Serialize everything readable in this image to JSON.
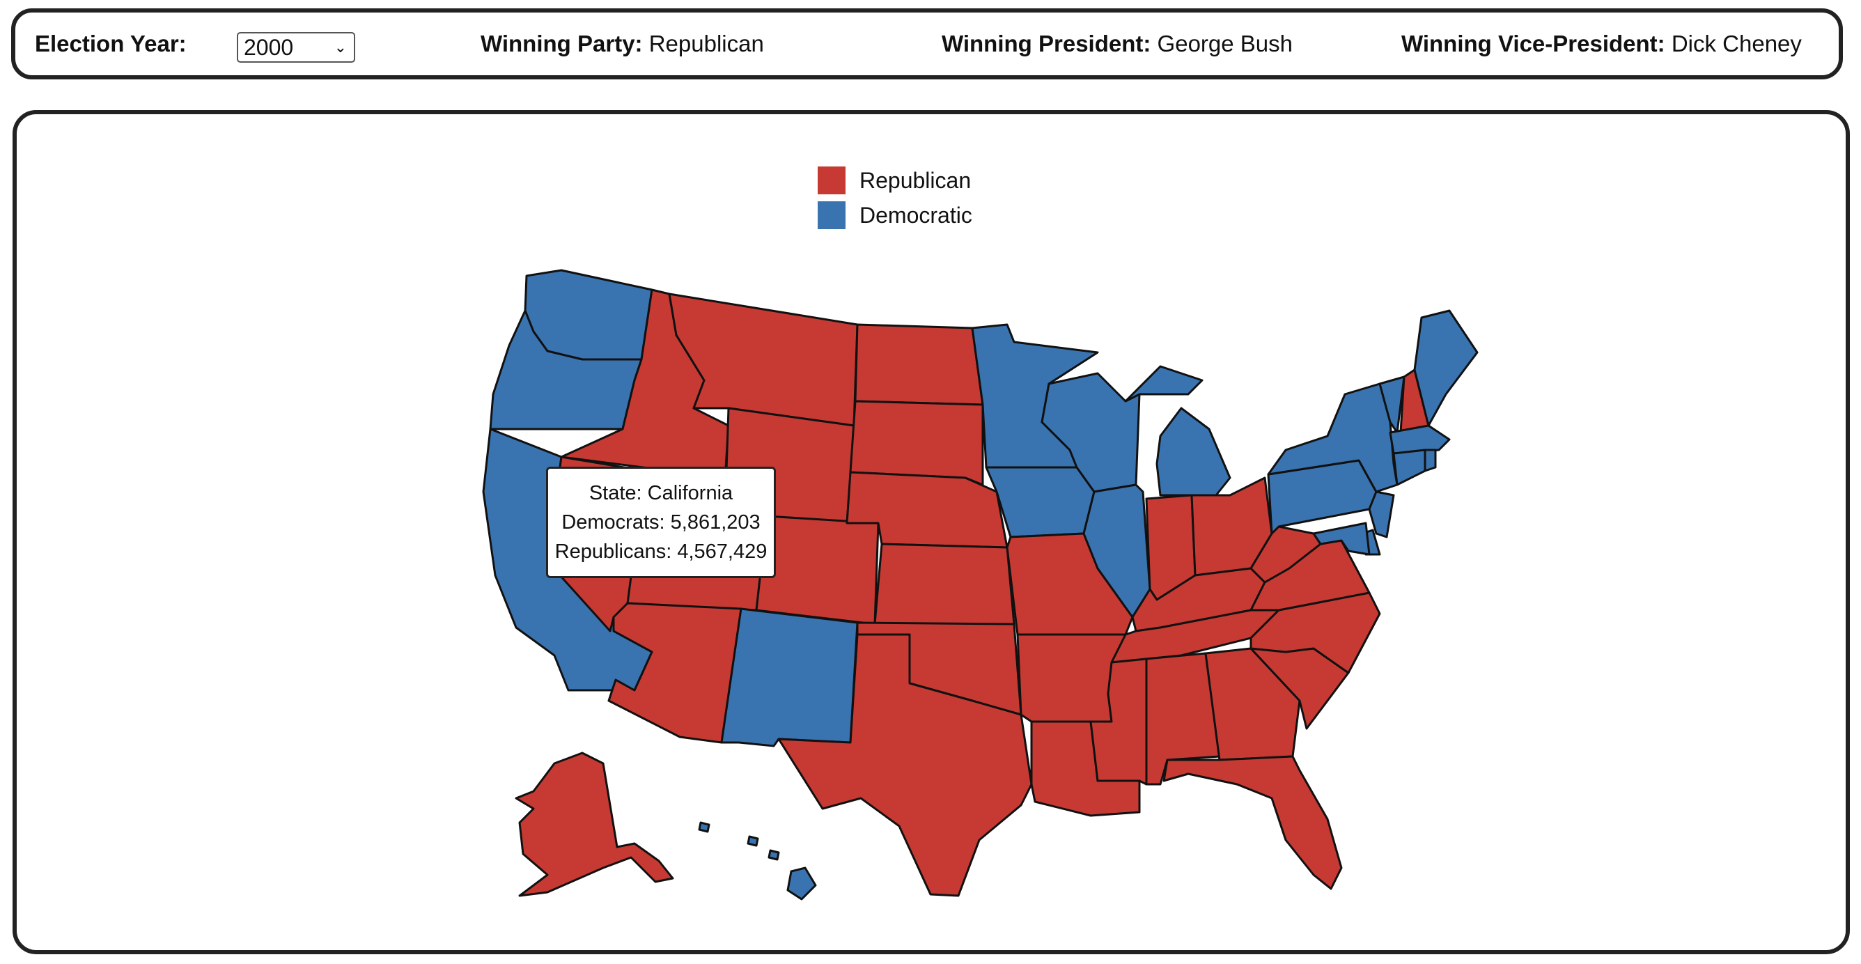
{
  "controls": {
    "year_label": "Election Year:",
    "year_value": "2000",
    "party_label": "Winning Party:",
    "party_value": "Republican",
    "president_label": "Winning President:",
    "president_value": "George Bush",
    "vp_label": "Winning Vice-President:",
    "vp_value": "Dick Cheney"
  },
  "legend": [
    {
      "label": "Republican",
      "color": "#c73a33"
    },
    {
      "label": "Democratic",
      "color": "#3a74b0"
    }
  ],
  "colors": {
    "republican": "#c73a33",
    "democratic": "#3a74b0"
  },
  "tooltip": {
    "line1": "State: California",
    "line2": "Democrats: 5,861,203",
    "line3": "Republicans: 4,567,429"
  },
  "states": {
    "WA": "D",
    "OR": "D",
    "CA": "D",
    "ID": "R",
    "NV": "R",
    "MT": "R",
    "WY": "R",
    "UT": "R",
    "AZ": "R",
    "CO": "R",
    "NM": "D",
    "ND": "R",
    "SD": "R",
    "NE": "R",
    "KS": "R",
    "OK": "R",
    "TX": "R",
    "MN": "D",
    "IA": "D",
    "MO": "R",
    "AR": "R",
    "LA": "R",
    "WI": "D",
    "IL": "D",
    "MI": "D",
    "IN": "R",
    "OH": "R",
    "KY": "R",
    "TN": "R",
    "MS": "R",
    "AL": "R",
    "GA": "R",
    "FL": "R",
    "SC": "R",
    "NC": "R",
    "VA": "R",
    "WV": "R",
    "PA": "D",
    "NY": "D",
    "VT": "D",
    "NH": "R",
    "ME": "D",
    "MA": "D",
    "RI": "D",
    "CT": "D",
    "NJ": "D",
    "DE": "D",
    "MD": "D",
    "AK": "R",
    "HI": "D"
  }
}
